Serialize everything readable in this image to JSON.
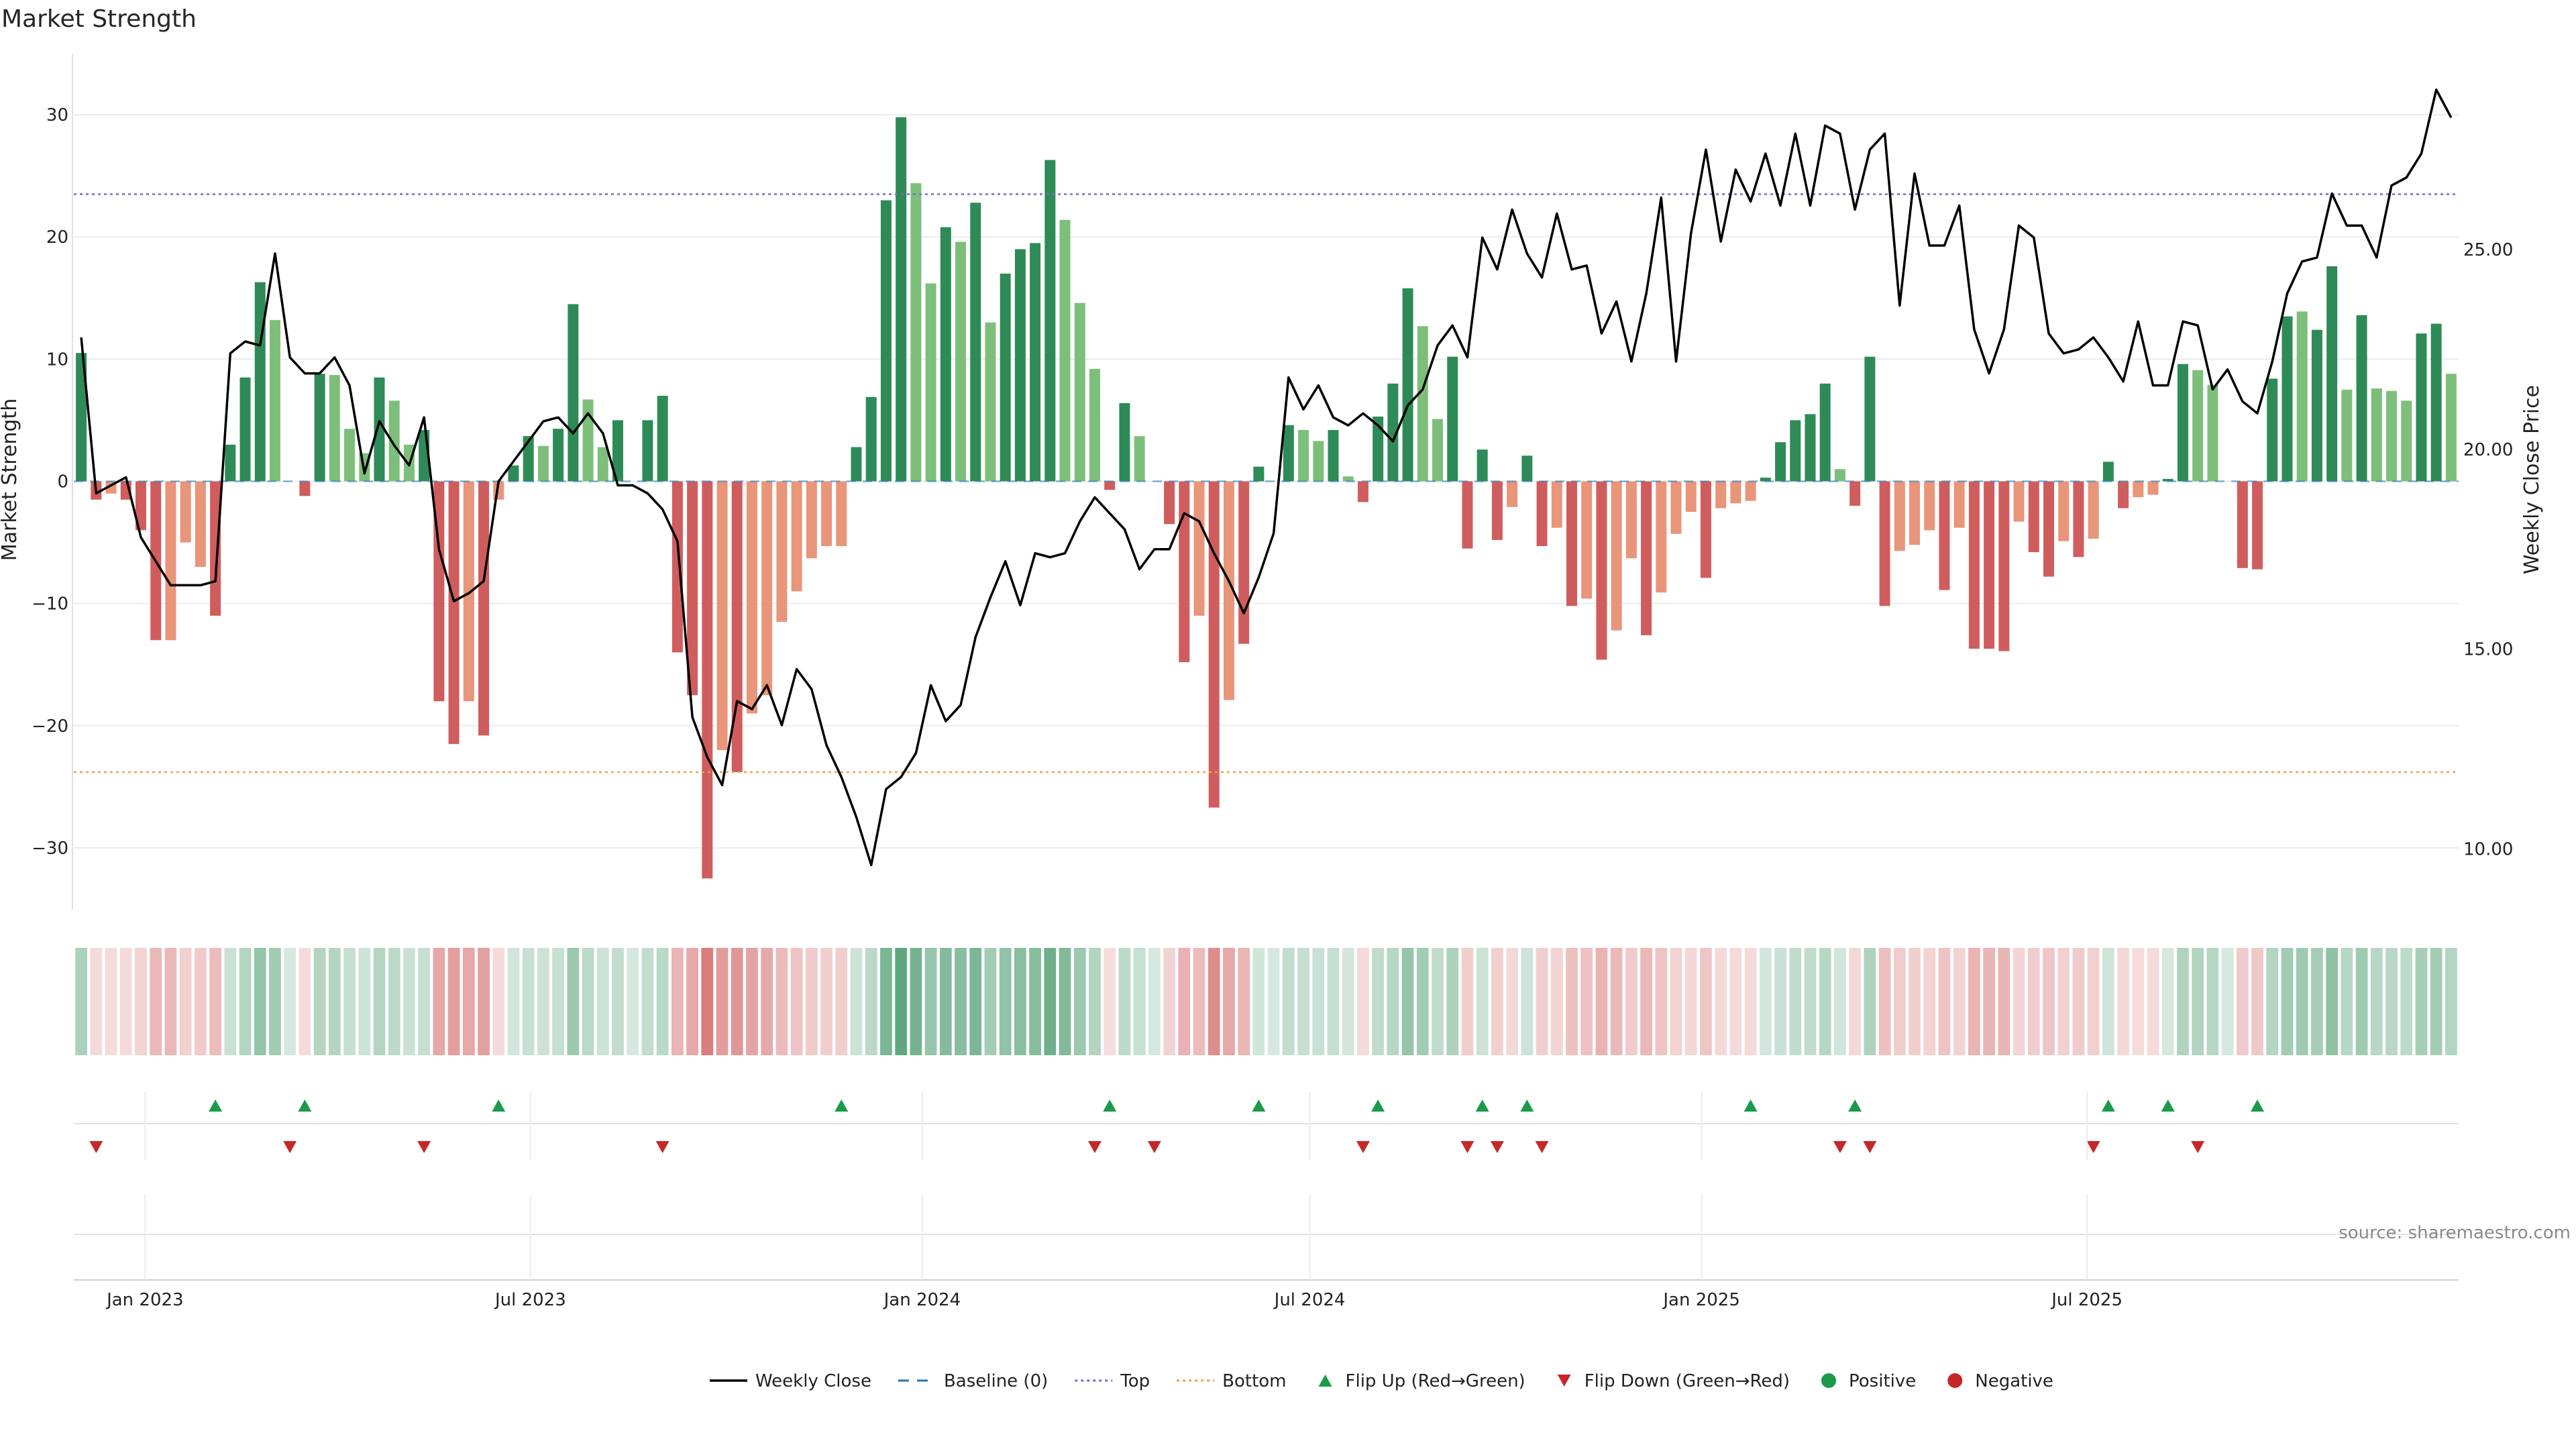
{
  "title": "Market Strength",
  "source": "source: sharemaestro.com",
  "colors": {
    "strong_up": "#2e8b57",
    "up": "#7dbf7a",
    "strong_down": "#d05d5d",
    "down": "#e8957a",
    "price_line": "#000000",
    "baseline": "#1f77b4",
    "top": "#7b68c8",
    "bottom": "#f0a04b",
    "flip_up": "#1a9a4a",
    "flip_down": "#c62828"
  },
  "legend": [
    {
      "label": "Weekly Close",
      "kind": "line"
    },
    {
      "label": "Baseline (0)",
      "kind": "dash"
    },
    {
      "label": "Top",
      "kind": "dot-top"
    },
    {
      "label": "Bottom",
      "kind": "dot-bottom"
    },
    {
      "label": "Flip Up (Red→Green)",
      "kind": "tri-up"
    },
    {
      "label": "Flip Down (Green→Red)",
      "kind": "tri-down"
    },
    {
      "label": "Positive",
      "kind": "circle-pos"
    },
    {
      "label": "Negative",
      "kind": "circle-neg"
    }
  ],
  "chart_data": {
    "type": "bar",
    "title": "Market Strength",
    "ylabel": "Market Strength",
    "y2label": "Weekly Close Price",
    "ylim": [
      -35,
      35
    ],
    "y2lim": [
      8.5,
      29.9
    ],
    "yticks": [
      -30,
      -20,
      -10,
      0,
      10,
      20,
      30
    ],
    "y2ticks": [
      "10.00",
      "15.00",
      "20.00",
      "25.00"
    ],
    "y2tick_values": [
      10,
      15,
      20,
      25
    ],
    "x_start": "2022-12-02",
    "x_labels": [
      {
        "label": "Jan 2023",
        "date": "2023-01-01"
      },
      {
        "label": "Jul 2023",
        "date": "2023-07-01"
      },
      {
        "label": "Jan 2024",
        "date": "2024-01-01"
      },
      {
        "label": "Jul 2024",
        "date": "2024-07-01"
      },
      {
        "label": "Jan 2025",
        "date": "2025-01-01"
      },
      {
        "label": "Jul 2025",
        "date": "2025-07-01"
      }
    ],
    "top_line": 23.5,
    "bottom_line": -23.8,
    "strength": [
      10.5,
      -1.5,
      -1,
      -1.5,
      -4,
      -13,
      -13,
      -5,
      -7,
      -11,
      3,
      8.5,
      16.3,
      13.2,
      0,
      -1.2,
      8.8,
      8.7,
      4.3,
      2.3,
      8.5,
      6.6,
      3,
      4.2,
      -18,
      -21.5,
      -18,
      -20.8,
      -1.5,
      1.3,
      3.7,
      2.9,
      4.3,
      14.5,
      6.7,
      2.8,
      5,
      0,
      5,
      7,
      -14,
      -17.5,
      -32.5,
      -22,
      -23.8,
      -19,
      -17.5,
      -11.5,
      -9,
      -6.3,
      -5.3,
      -5.3,
      2.8,
      6.9,
      23,
      29.8,
      24.4,
      16.2,
      20.8,
      19.6,
      22.8,
      13,
      17,
      19,
      19.5,
      26.3,
      21.4,
      14.6,
      9.2,
      -0.7,
      6.4,
      3.7,
      0,
      -3.5,
      -14.8,
      -11,
      -26.7,
      -17.9,
      -13.3,
      1.2,
      0,
      4.6,
      4.2,
      3.3,
      4.2,
      0.4,
      -1.7,
      5.3,
      8,
      15.8,
      12.7,
      5.1,
      10.2,
      -5.5,
      2.6,
      -4.8,
      -2.1,
      2.1,
      -5.3,
      -3.8,
      -10.2,
      -9.6,
      -14.6,
      -12.2,
      -6.3,
      -12.6,
      -9.1,
      -4.3,
      -2.5,
      -7.9,
      -2.2,
      -1.8,
      -1.6,
      0.3,
      3.2,
      5,
      5.5,
      8,
      1,
      -2,
      10.2,
      -10.2,
      -5.7,
      -5.2,
      -4,
      -8.9,
      -3.8,
      -13.7,
      -13.7,
      -13.9,
      -3.3,
      -5.8,
      -7.8,
      -4.9,
      -6.2,
      -4.7,
      1.6,
      -2.2,
      -1.3,
      -1.1,
      0.2,
      9.6,
      9.1,
      7.9,
      0,
      -7.1,
      -7.2,
      8.4,
      13.5,
      13.9,
      12.4,
      17.6,
      7.5,
      13.6,
      7.6,
      7.4,
      6.6,
      12.1,
      12.9,
      8.8
    ],
    "tone": [
      "S",
      "S",
      "W",
      "S",
      "S",
      "S",
      "W",
      "W",
      "W",
      "S",
      "S",
      "S",
      "S",
      "W",
      "S",
      "S",
      "S",
      "W",
      "W",
      "W",
      "S",
      "W",
      "W",
      "S",
      "S",
      "S",
      "W",
      "S",
      "W",
      "S",
      "S",
      "W",
      "S",
      "S",
      "W",
      "W",
      "S",
      "S",
      "S",
      "S",
      "S",
      "S",
      "S",
      "W",
      "S",
      "W",
      "W",
      "W",
      "W",
      "W",
      "W",
      "W",
      "S",
      "S",
      "S",
      "S",
      "W",
      "W",
      "S",
      "W",
      "S",
      "W",
      "S",
      "S",
      "S",
      "S",
      "W",
      "W",
      "W",
      "S",
      "S",
      "W",
      "S",
      "S",
      "S",
      "W",
      "S",
      "W",
      "S",
      "S",
      "S",
      "S",
      "W",
      "W",
      "S",
      "W",
      "S",
      "S",
      "S",
      "S",
      "W",
      "W",
      "S",
      "S",
      "S",
      "S",
      "W",
      "S",
      "S",
      "W",
      "S",
      "W",
      "S",
      "W",
      "W",
      "S",
      "W",
      "W",
      "W",
      "S",
      "W",
      "W",
      "W",
      "S",
      "S",
      "S",
      "S",
      "S",
      "W",
      "S",
      "S",
      "S",
      "W",
      "W",
      "W",
      "S",
      "W",
      "S",
      "S",
      "S",
      "W",
      "S",
      "S",
      "W",
      "S",
      "W",
      "S",
      "S",
      "W",
      "W",
      "S",
      "S",
      "W",
      "W",
      "S",
      "S",
      "S",
      "S",
      "S",
      "W",
      "S",
      "S",
      "W",
      "S",
      "W",
      "W",
      "W",
      "S",
      "S",
      "W"
    ],
    "weekly_close": [
      22.8,
      18.9,
      19.1,
      19.3,
      17.8,
      17.2,
      16.6,
      16.6,
      16.6,
      16.7,
      22.4,
      22.7,
      22.6,
      24.9,
      22.3,
      21.9,
      21.9,
      22.3,
      21.6,
      19.4,
      20.7,
      20.1,
      19.6,
      20.8,
      17.5,
      16.2,
      16.4,
      16.7,
      19.2,
      19.7,
      20.2,
      20.7,
      20.8,
      20.4,
      20.9,
      20.4,
      19.1,
      19.1,
      18.9,
      18.5,
      17.7,
      13.3,
      12.3,
      11.6,
      13.7,
      13.5,
      14.1,
      13.1,
      14.5,
      14.0,
      12.6,
      11.8,
      10.8,
      9.6,
      11.5,
      11.8,
      12.4,
      14.1,
      13.2,
      13.6,
      15.3,
      16.3,
      17.2,
      16.1,
      17.4,
      17.3,
      17.4,
      18.2,
      18.8,
      18.4,
      18.0,
      17.0,
      17.5,
      17.5,
      18.4,
      18.2,
      17.4,
      16.7,
      15.9,
      16.8,
      17.9,
      21.8,
      21.0,
      21.6,
      20.8,
      20.6,
      20.9,
      20.6,
      20.2,
      21.1,
      21.5,
      22.6,
      23.1,
      22.3,
      25.3,
      24.5,
      26.0,
      24.9,
      24.3,
      25.9,
      24.5,
      24.6,
      22.9,
      23.7,
      22.2,
      23.9,
      26.3,
      22.2,
      25.4,
      27.5,
      25.2,
      27.0,
      26.2,
      27.4,
      26.1,
      27.9,
      26.1,
      28.1,
      27.9,
      26.0,
      27.5,
      27.9,
      23.6,
      26.9,
      25.1,
      25.1,
      26.1,
      23.0,
      21.9,
      23.0,
      25.6,
      25.3,
      22.9,
      22.4,
      22.5,
      22.8,
      22.3,
      21.7,
      23.2,
      21.6,
      21.6,
      23.2,
      23.1,
      21.5,
      22.0,
      21.2,
      20.9,
      22.2,
      23.9,
      24.7,
      24.8,
      26.4,
      25.6,
      25.6,
      24.8,
      26.6,
      26.8,
      27.4,
      29.0,
      28.3
    ],
    "flip_up_weeks": [
      9,
      15,
      28,
      51,
      69,
      79,
      87,
      94,
      97,
      112,
      119,
      136,
      140,
      146
    ],
    "flip_down_weeks": [
      1,
      14,
      23,
      39,
      68,
      72,
      86,
      93,
      95,
      98,
      118,
      120,
      135,
      142
    ]
  }
}
